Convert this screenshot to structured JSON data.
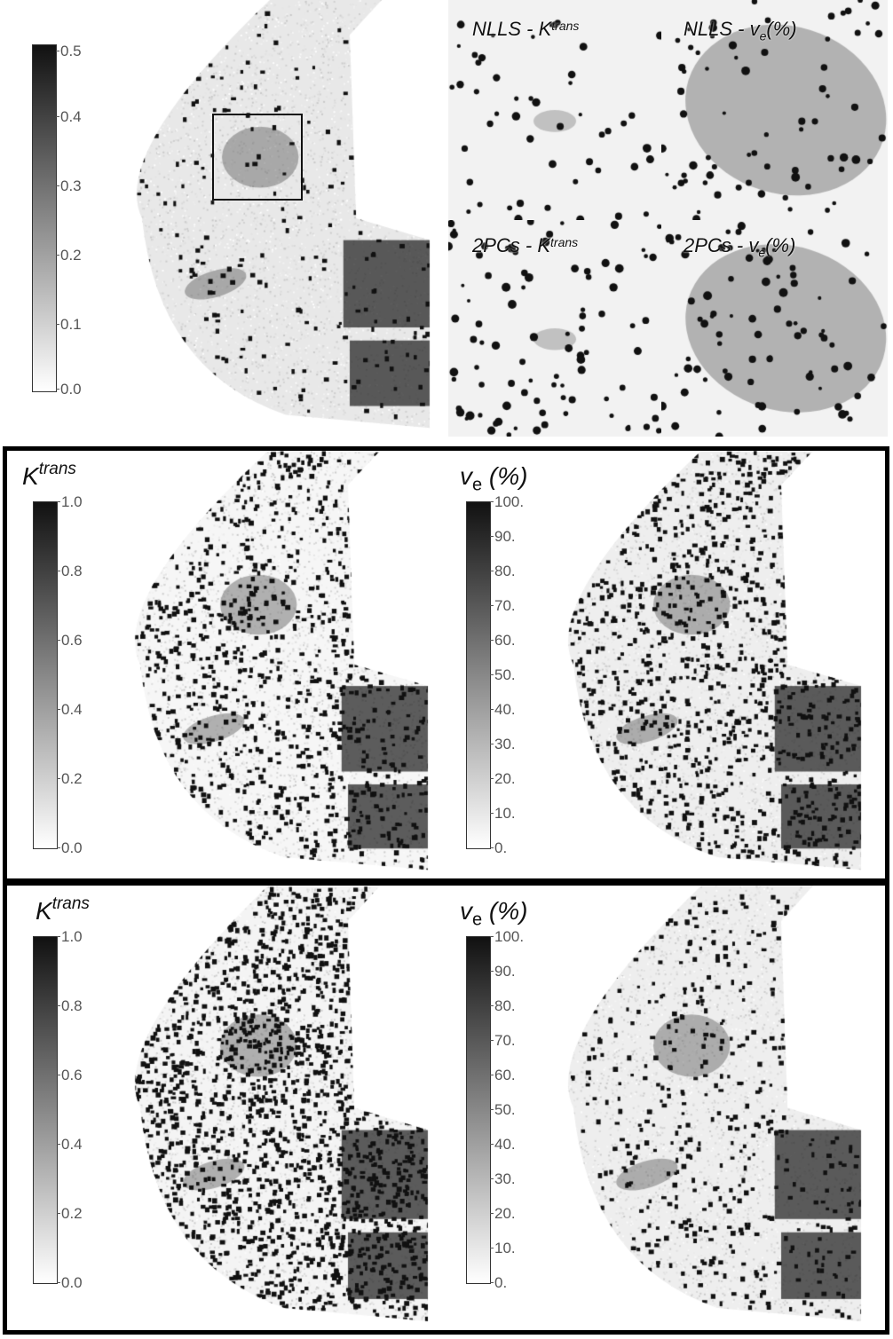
{
  "top": {
    "colorbar_ticks": [
      "0.5",
      "0.4",
      "0.3",
      "0.2",
      "0.1",
      "0.0"
    ],
    "insets": [
      {
        "method": "NLLS",
        "sep": " - ",
        "param": "K",
        "param_sup": "trans",
        "param_sub": "",
        "unit": ""
      },
      {
        "method": "NLLS",
        "sep": " - ",
        "param": "v",
        "param_sup": "",
        "param_sub": "e",
        "unit": "(%)"
      },
      {
        "method": "2PCs",
        "sep": " - ",
        "param": "K",
        "param_sup": "trans",
        "param_sub": "",
        "unit": ""
      },
      {
        "method": "2PCs",
        "sep": " - ",
        "param": "v",
        "param_sup": "",
        "param_sub": "e",
        "unit": "(%)"
      }
    ]
  },
  "panels": [
    {
      "ktrans": {
        "symbol": "K",
        "sup": "trans",
        "ticks": [
          "1.0",
          "0.8",
          "0.6",
          "0.4",
          "0.2",
          "0.0"
        ]
      },
      "ve": {
        "symbol": "v",
        "sub": "e",
        "unit": "(%)",
        "ticks": [
          "100.",
          "90.",
          "80.",
          "70.",
          "60.",
          "50.",
          "40.",
          "30.",
          "20.",
          "10.",
          "0."
        ]
      }
    },
    {
      "ktrans": {
        "symbol": "K",
        "sup": "trans",
        "ticks": [
          "1.0",
          "0.8",
          "0.6",
          "0.4",
          "0.2",
          "0.0"
        ]
      },
      "ve": {
        "symbol": "v",
        "sub": "e",
        "unit": "(%)",
        "ticks": [
          "100.",
          "90.",
          "80.",
          "70.",
          "60.",
          "50.",
          "40.",
          "30.",
          "20.",
          "10.",
          "0."
        ]
      }
    }
  ],
  "colors": {
    "colormap_high": "#111111",
    "colormap_low": "#ffffff",
    "frame": "#000000"
  }
}
